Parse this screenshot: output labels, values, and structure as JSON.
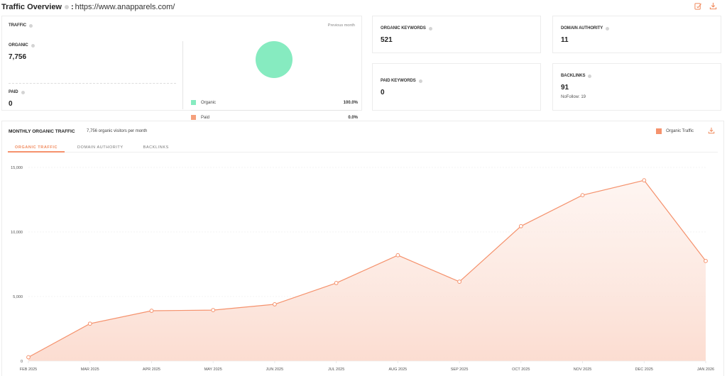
{
  "header": {
    "title": "Traffic Overview",
    "separator": ":",
    "url": "https://www.anapparels.com/",
    "icons": [
      "edit-report-icon",
      "download-icon"
    ]
  },
  "traffic": {
    "label": "TRAFFIC",
    "period": "Previous month",
    "organic_label": "ORGANIC",
    "organic_value": "7,756",
    "paid_label": "PAID",
    "paid_value": "0",
    "legend": [
      {
        "label": "Organic",
        "pct": "100.0%",
        "color": "#86ebc0"
      },
      {
        "label": "Paid",
        "pct": "0.0%",
        "color": "#f5a07c"
      }
    ]
  },
  "metrics": {
    "organic_keywords": {
      "label": "ORGANIC KEYWORDS",
      "value": "521"
    },
    "domain_authority": {
      "label": "DOMAIN AUTHORITY",
      "value": "11"
    },
    "paid_keywords": {
      "label": "PAID KEYWORDS",
      "value": "0"
    },
    "backlinks": {
      "label": "BACKLINKS",
      "value": "91",
      "sub": "NoFollow: 19"
    }
  },
  "monthly": {
    "title": "MONTHLY ORGANIC TRAFFIC",
    "subtitle": "7,756 organic visitors per month",
    "legend_label": "Organic Traffic",
    "tabs": [
      {
        "label": "ORGANIC TRAFFIC",
        "active": true
      },
      {
        "label": "DOMAIN AUTHORITY",
        "active": false
      },
      {
        "label": "BACKLINKS",
        "active": false
      }
    ]
  },
  "colors": {
    "accent": "#f08a5d",
    "line": "#f5926d",
    "organic_pie": "#86ebc0"
  },
  "chart_data": {
    "type": "area",
    "title": "MONTHLY ORGANIC TRAFFIC",
    "xlabel": "",
    "ylabel": "",
    "categories": [
      "FEB 2025",
      "MAR 2025",
      "APR 2025",
      "MAY 2025",
      "JUN 2025",
      "JUL 2025",
      "AUG 2025",
      "SEP 2025",
      "OCT 2025",
      "NOV 2025",
      "DEC 2025",
      "JAN 2026"
    ],
    "series": [
      {
        "name": "Organic Traffic",
        "values": [
          300,
          2900,
          3900,
          3950,
          4400,
          6050,
          8200,
          6150,
          10450,
          12850,
          14000,
          7756
        ]
      }
    ],
    "yticks": [
      "0",
      "5,000",
      "10,000",
      "15,000"
    ],
    "ylim": [
      0,
      15000
    ],
    "grid": true,
    "legend_position": "top-right"
  }
}
